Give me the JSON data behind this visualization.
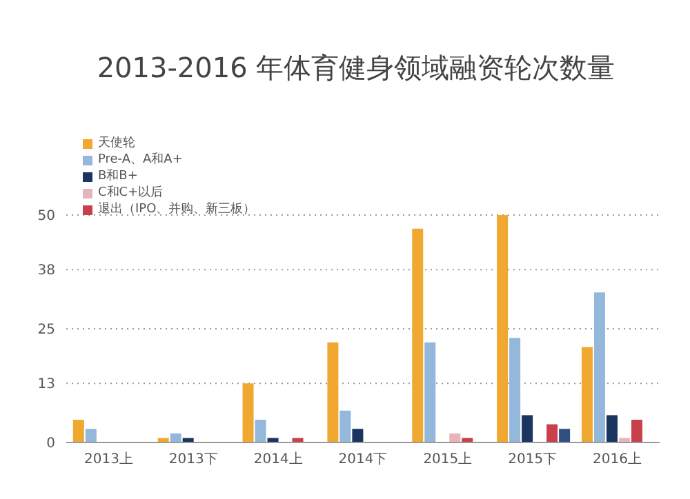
{
  "chart_data": {
    "type": "bar",
    "title": "2013-2016 年体育健身领域融资轮次数量",
    "categories": [
      "2013上",
      "2013下",
      "2014上",
      "2014下",
      "2015上",
      "2015下",
      "2016上"
    ],
    "series": [
      {
        "name": "天使轮",
        "color": "#f0a830",
        "values": [
          5,
          1,
          13,
          22,
          47,
          50,
          21
        ]
      },
      {
        "name": "Pre-A、A和A+",
        "color": "#93b8dc",
        "values": [
          3,
          2,
          5,
          7,
          22,
          23,
          33
        ]
      },
      {
        "name": "B和B+",
        "color": "#1a3560",
        "values": [
          0,
          1,
          1,
          3,
          0,
          6,
          6
        ]
      },
      {
        "name": "C和C+以后",
        "color": "#e8b4bc",
        "values": [
          0,
          0,
          0,
          0,
          2,
          0,
          1
        ]
      },
      {
        "name": "退出（IPO、并购、新三板）",
        "color": "#c8404c",
        "values": [
          0,
          0,
          1,
          0,
          1,
          4,
          5
        ]
      },
      {
        "color": "#2f5080",
        "values": [
          0,
          0,
          0,
          0,
          0,
          3,
          0
        ]
      }
    ],
    "ylim": [
      0,
      50
    ],
    "yticks": [
      0,
      13,
      25,
      38,
      50
    ],
    "grid": "y",
    "legend": "top left"
  }
}
